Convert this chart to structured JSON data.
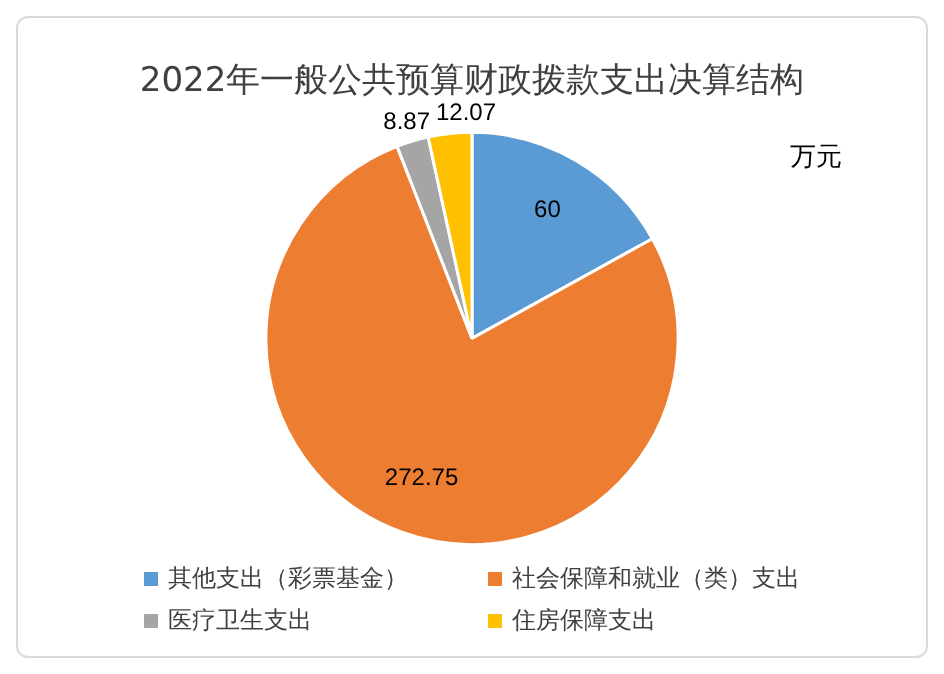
{
  "chart_data": {
    "type": "pie",
    "title": "2022年一般公共预算财政拨款支出决算结构",
    "categories": [
      "其他支出（彩票基金）",
      "社会保障和就业（类）支出",
      "医疗卫生支出",
      "住房保障支出"
    ],
    "values": [
      60,
      272.75,
      8.87,
      12.07
    ],
    "colors": [
      "#5b9bd5",
      "#ed7d31",
      "#a5a5a5",
      "#ffc000"
    ],
    "data_labels": true,
    "legend": "bottom",
    "annotations": [
      "万元"
    ]
  }
}
